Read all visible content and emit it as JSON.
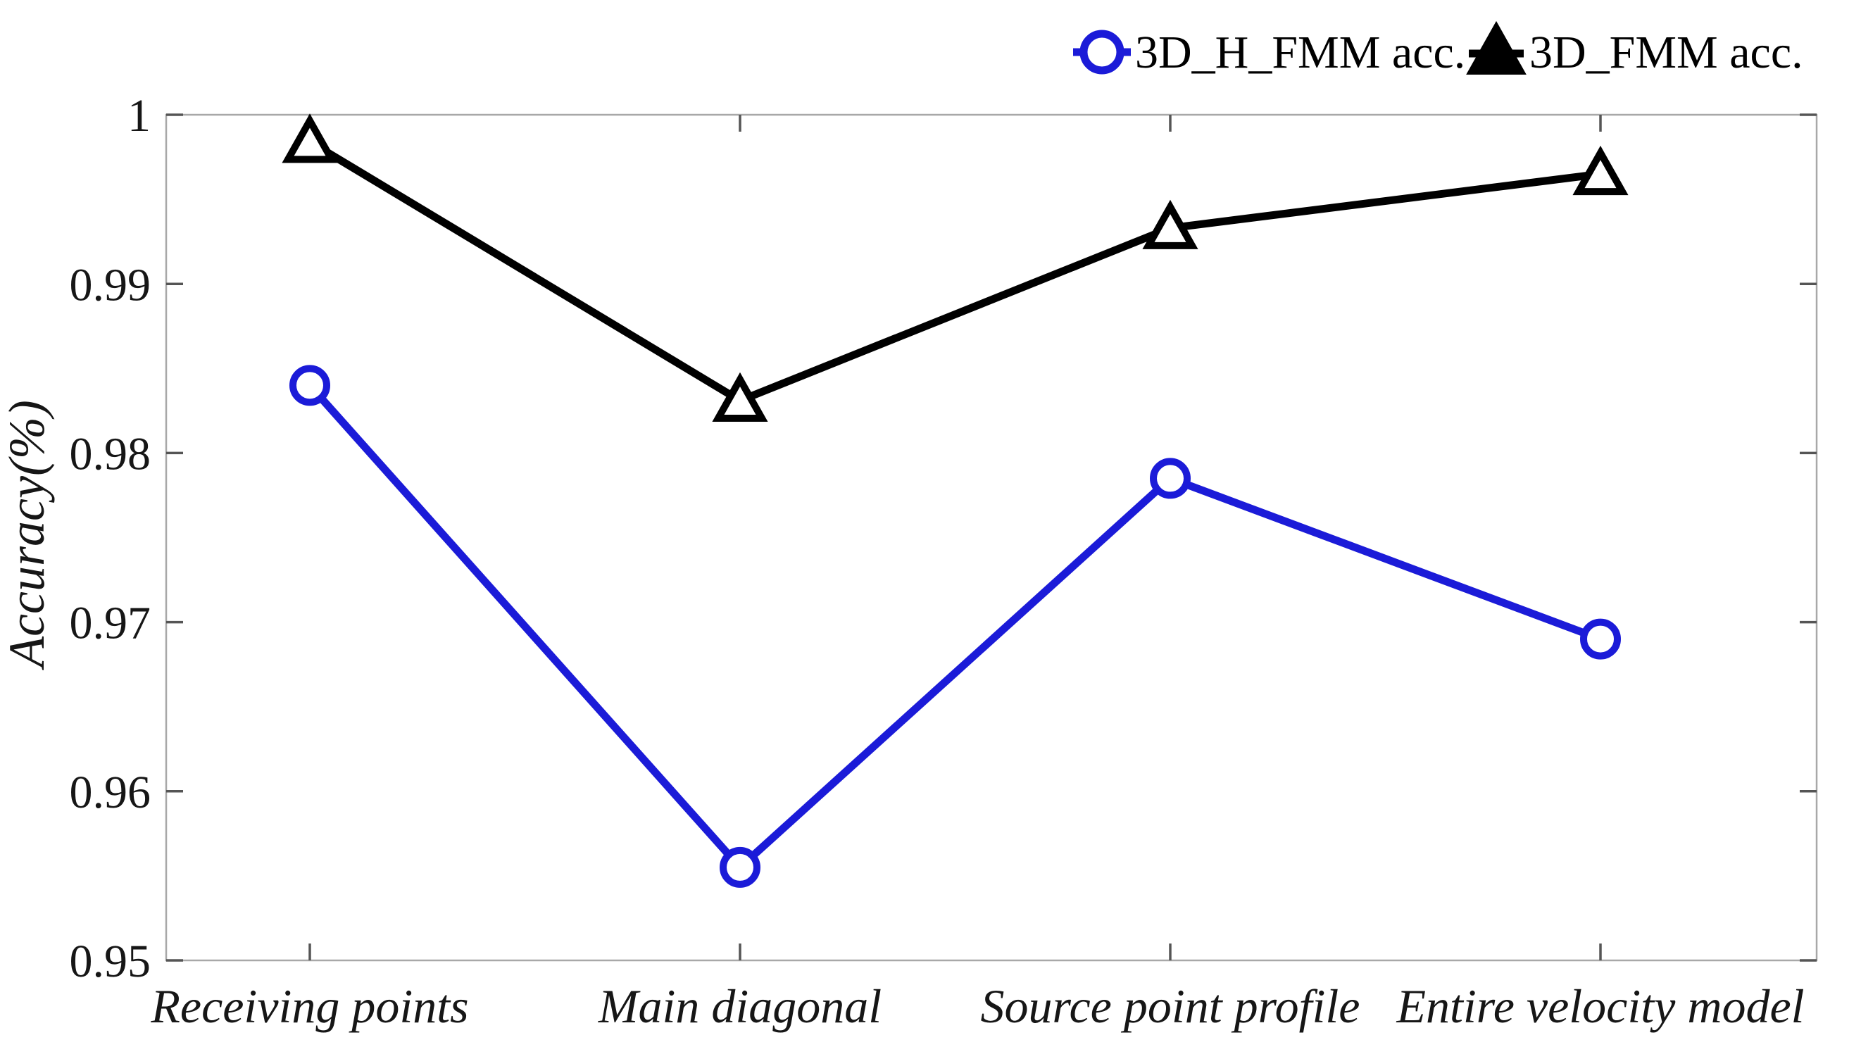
{
  "figure": {
    "background": "#ffffff"
  },
  "chart_data": {
    "type": "line",
    "title": "",
    "xlabel": "",
    "ylabel": "Accuracy(%)",
    "categories": [
      "Receiving points",
      "Main diagonal",
      "Source point profile",
      "Entire velocity model"
    ],
    "series": [
      {
        "name": "3D_H_FMM acc.",
        "color": "#1b1bd8",
        "marker": "circle",
        "values": [
          0.984,
          0.9555,
          0.9785,
          0.969
        ]
      },
      {
        "name": "3D_FMM acc.",
        "color": "#000000",
        "marker": "triangle",
        "values": [
          0.9984,
          0.9831,
          0.9933,
          0.9965
        ]
      }
    ],
    "ylim": [
      0.95,
      1.0
    ],
    "yticks": [
      1,
      0.99,
      0.98,
      0.97,
      0.96,
      0.95
    ],
    "ytick_labels": [
      "1",
      "0.99",
      "0.98",
      "0.97",
      "0.96",
      "0.95"
    ],
    "grid": false,
    "legend_position": "top-right-outside",
    "legend_entries": [
      "3D_H_FMM acc.",
      "3D_FMM acc."
    ],
    "axis_color": "#a8a8a8",
    "tick_color": "#555555",
    "marker_fill": "#ffffff"
  }
}
